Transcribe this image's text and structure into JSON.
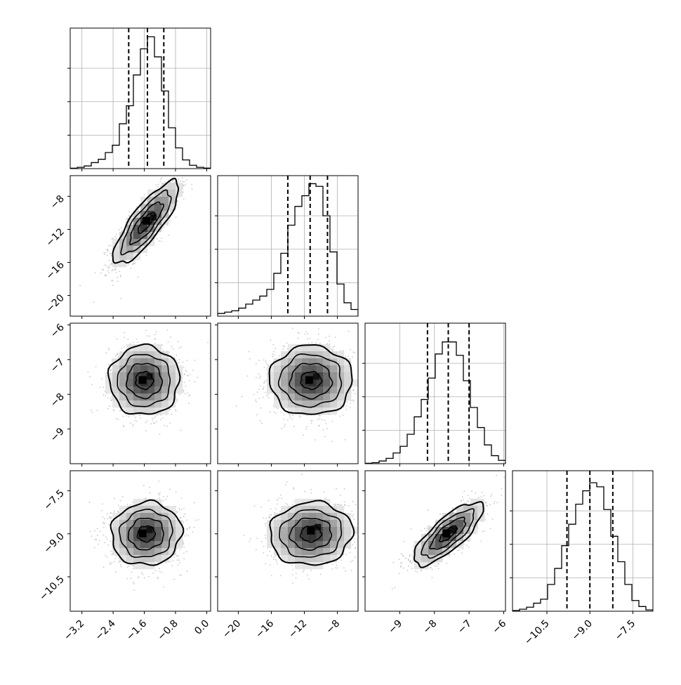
{
  "chart_data": {
    "type": "corner",
    "parameters": [
      {
        "index": 0,
        "range": [
          -3.5,
          0.1
        ],
        "ticks": [
          -3.2,
          -2.4,
          -1.6,
          -0.8,
          0.0
        ],
        "tick_labels": [
          "−3.2",
          "−2.4",
          "−1.6",
          "−0.8",
          "0.0"
        ],
        "quantiles": [
          -2.0,
          -1.52,
          -1.1
        ],
        "hist_bins": [
          -3.5,
          -3.32,
          -3.14,
          -2.96,
          -2.78,
          -2.6,
          -2.42,
          -2.24,
          -2.06,
          -1.88,
          -1.7,
          -1.52,
          -1.34,
          -1.16,
          -0.98,
          -0.8,
          -0.62,
          -0.44,
          -0.26,
          -0.08,
          0.1
        ],
        "hist_values": [
          0.003,
          0.01,
          0.02,
          0.045,
          0.07,
          0.12,
          0.175,
          0.335,
          0.47,
          0.7,
          0.895,
          0.985,
          0.835,
          0.58,
          0.305,
          0.155,
          0.065,
          0.025,
          0.01,
          0.004
        ]
      },
      {
        "index": 1,
        "range": [
          -22.5,
          -5.5
        ],
        "ticks": [
          -20,
          -16,
          -12,
          -8
        ],
        "tick_labels": [
          "−20",
          "−16",
          "−12",
          "−8"
        ],
        "quantiles": [
          -14.0,
          -11.3,
          -9.2
        ],
        "hist_bins": [
          -22.5,
          -21.65,
          -20.8,
          -19.95,
          -19.1,
          -18.25,
          -17.4,
          -16.55,
          -15.7,
          -14.85,
          -14.0,
          -13.15,
          -12.3,
          -11.45,
          -10.6,
          -9.75,
          -8.9,
          -8.05,
          -7.2,
          -6.35,
          -5.5
        ],
        "hist_values": [
          0.02,
          0.03,
          0.04,
          0.06,
          0.09,
          0.12,
          0.15,
          0.2,
          0.32,
          0.47,
          0.68,
          0.82,
          0.9,
          0.99,
          0.97,
          0.75,
          0.48,
          0.24,
          0.1,
          0.05
        ]
      },
      {
        "index": 2,
        "range": [
          -10.0,
          -5.95
        ],
        "ticks": [
          -9,
          -8,
          -7,
          -6
        ],
        "tick_labels": [
          "−9",
          "−8",
          "−7",
          "−6"
        ],
        "quantiles": [
          -8.2,
          -7.6,
          -7.0
        ],
        "hist_bins": [
          -10.0,
          -9.7975,
          -9.595,
          -9.3925,
          -9.19,
          -8.9875,
          -8.785,
          -8.5825,
          -8.38,
          -8.1775,
          -7.975,
          -7.7725,
          -7.57,
          -7.3675,
          -7.165,
          -6.9625,
          -6.76,
          -6.5575,
          -6.355,
          -6.1525,
          -5.95
        ],
        "hist_values": [
          0.003,
          0.008,
          0.02,
          0.04,
          0.08,
          0.13,
          0.22,
          0.35,
          0.48,
          0.64,
          0.82,
          0.91,
          0.91,
          0.81,
          0.62,
          0.42,
          0.27,
          0.14,
          0.06,
          0.025
        ]
      },
      {
        "index": 3,
        "range": [
          -11.7,
          -6.8
        ],
        "ticks": [
          -10.5,
          -9.0,
          -7.5
        ],
        "tick_labels": [
          "−10.5",
          "−9.0",
          "−7.5"
        ],
        "quantiles": [
          -9.8,
          -9.0,
          -8.2
        ],
        "hist_bins": [
          -11.7,
          -11.455,
          -11.21,
          -10.965,
          -10.72,
          -10.475,
          -10.23,
          -9.985,
          -9.74,
          -9.495,
          -9.25,
          -9.005,
          -8.76,
          -8.515,
          -8.27,
          -8.025,
          -7.78,
          -7.535,
          -7.29,
          -7.045,
          -6.8
        ],
        "hist_values": [
          0.005,
          0.015,
          0.03,
          0.06,
          0.09,
          0.2,
          0.32,
          0.49,
          0.65,
          0.8,
          0.9,
          0.96,
          0.93,
          0.76,
          0.56,
          0.37,
          0.2,
          0.08,
          0.035,
          0.01
        ]
      }
    ],
    "panels_2d": [
      {
        "row": 1,
        "col": 0,
        "mean": [
          -1.55,
          -11.2
        ],
        "std": [
          0.42,
          2.5
        ],
        "corr": 0.82,
        "mode": [
          -1.5,
          -11.0
        ]
      },
      {
        "row": 2,
        "col": 0,
        "mean": [
          -1.6,
          -7.6
        ],
        "std": [
          0.45,
          0.5
        ],
        "corr": 0.0,
        "mode": [
          -1.6,
          -7.6
        ]
      },
      {
        "row": 2,
        "col": 1,
        "mean": [
          -11.2,
          -7.6
        ],
        "std": [
          2.5,
          0.5
        ],
        "corr": 0.0,
        "mode": [
          -11.2,
          -7.6
        ]
      },
      {
        "row": 3,
        "col": 0,
        "mean": [
          -1.55,
          -9.0
        ],
        "std": [
          0.45,
          0.55
        ],
        "corr": 0.05,
        "mode": [
          -1.6,
          -9.0
        ]
      },
      {
        "row": 3,
        "col": 1,
        "mean": [
          -11.2,
          -9.0
        ],
        "std": [
          2.5,
          0.55
        ],
        "corr": 0.05,
        "mode": [
          -11.0,
          -8.9
        ]
      },
      {
        "row": 3,
        "col": 2,
        "mean": [
          -7.6,
          -9.0
        ],
        "std": [
          0.5,
          0.55
        ],
        "corr": 0.78,
        "mode": [
          -7.6,
          -9.0
        ]
      }
    ],
    "contour_levels_sigma": [
      0.5,
      1.0,
      1.5,
      2.0
    ],
    "grid": true,
    "title": "",
    "xlabel": "",
    "ylabel": ""
  }
}
